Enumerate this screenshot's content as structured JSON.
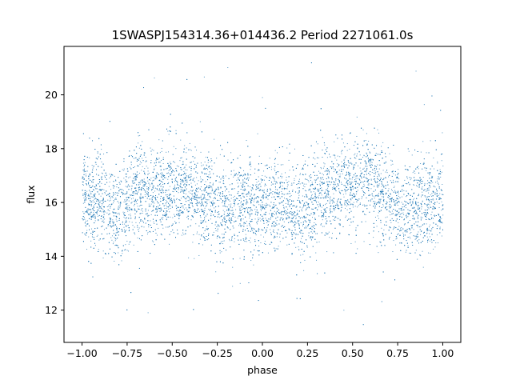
{
  "chart_data": {
    "type": "scatter",
    "title": "1SWASPJ154314.36+014436.2 Period 2271061.0s",
    "xlabel": "phase",
    "ylabel": "flux",
    "xlim": [
      -1.1,
      1.1
    ],
    "ylim": [
      10.8,
      21.8
    ],
    "x_ticks": [
      -1.0,
      -0.75,
      -0.5,
      -0.25,
      0.0,
      0.25,
      0.5,
      0.75,
      1.0
    ],
    "x_tick_labels": [
      "−1.00",
      "−0.75",
      "−0.50",
      "−0.25",
      "0.00",
      "0.25",
      "0.50",
      "0.75",
      "1.00"
    ],
    "y_ticks": [
      12,
      14,
      16,
      18,
      20
    ],
    "y_tick_labels": [
      "12",
      "14",
      "16",
      "18",
      "20"
    ],
    "grid": false,
    "legend": "none",
    "marker_color": "#1f77b4",
    "x_domain": [
      -1.0,
      1.0
    ],
    "median_flux": 16.1,
    "flux_spread": 1.4,
    "typical_range": [
      13.5,
      18.5
    ],
    "outlier_range": [
      11.3,
      21.3
    ],
    "series": [
      {
        "values_description_points": [
          [
            -1.0,
            16.2
          ],
          [
            -0.95,
            15.8
          ],
          [
            -0.9,
            16.3
          ],
          [
            -0.85,
            15.9
          ],
          [
            -0.8,
            15.5
          ],
          [
            -0.75,
            16.0
          ],
          [
            -0.7,
            16.4
          ],
          [
            -0.65,
            16.6
          ],
          [
            -0.6,
            16.3
          ],
          [
            -0.55,
            16.5
          ],
          [
            -0.5,
            16.4
          ],
          [
            -0.45,
            16.6
          ],
          [
            -0.4,
            16.5
          ],
          [
            -0.35,
            16.3
          ],
          [
            -0.3,
            16.2
          ],
          [
            -0.25,
            15.8
          ],
          [
            -0.2,
            15.7
          ],
          [
            -0.15,
            15.9
          ],
          [
            -0.1,
            16.0
          ],
          [
            -0.05,
            15.8
          ],
          [
            0.0,
            15.7
          ],
          [
            0.05,
            15.9
          ],
          [
            0.1,
            16.0
          ],
          [
            0.15,
            15.8
          ],
          [
            0.2,
            15.6
          ],
          [
            0.25,
            15.9
          ],
          [
            0.3,
            16.3
          ],
          [
            0.35,
            16.5
          ],
          [
            0.4,
            16.4
          ],
          [
            0.45,
            16.6
          ],
          [
            0.5,
            16.5
          ],
          [
            0.55,
            16.7
          ],
          [
            0.6,
            16.6
          ],
          [
            0.65,
            16.4
          ],
          [
            0.7,
            16.2
          ],
          [
            0.75,
            15.8
          ],
          [
            0.8,
            15.7
          ],
          [
            0.85,
            15.9
          ],
          [
            0.9,
            16.1
          ],
          [
            0.95,
            16.0
          ],
          [
            1.0,
            16.2
          ]
        ]
      }
    ]
  }
}
